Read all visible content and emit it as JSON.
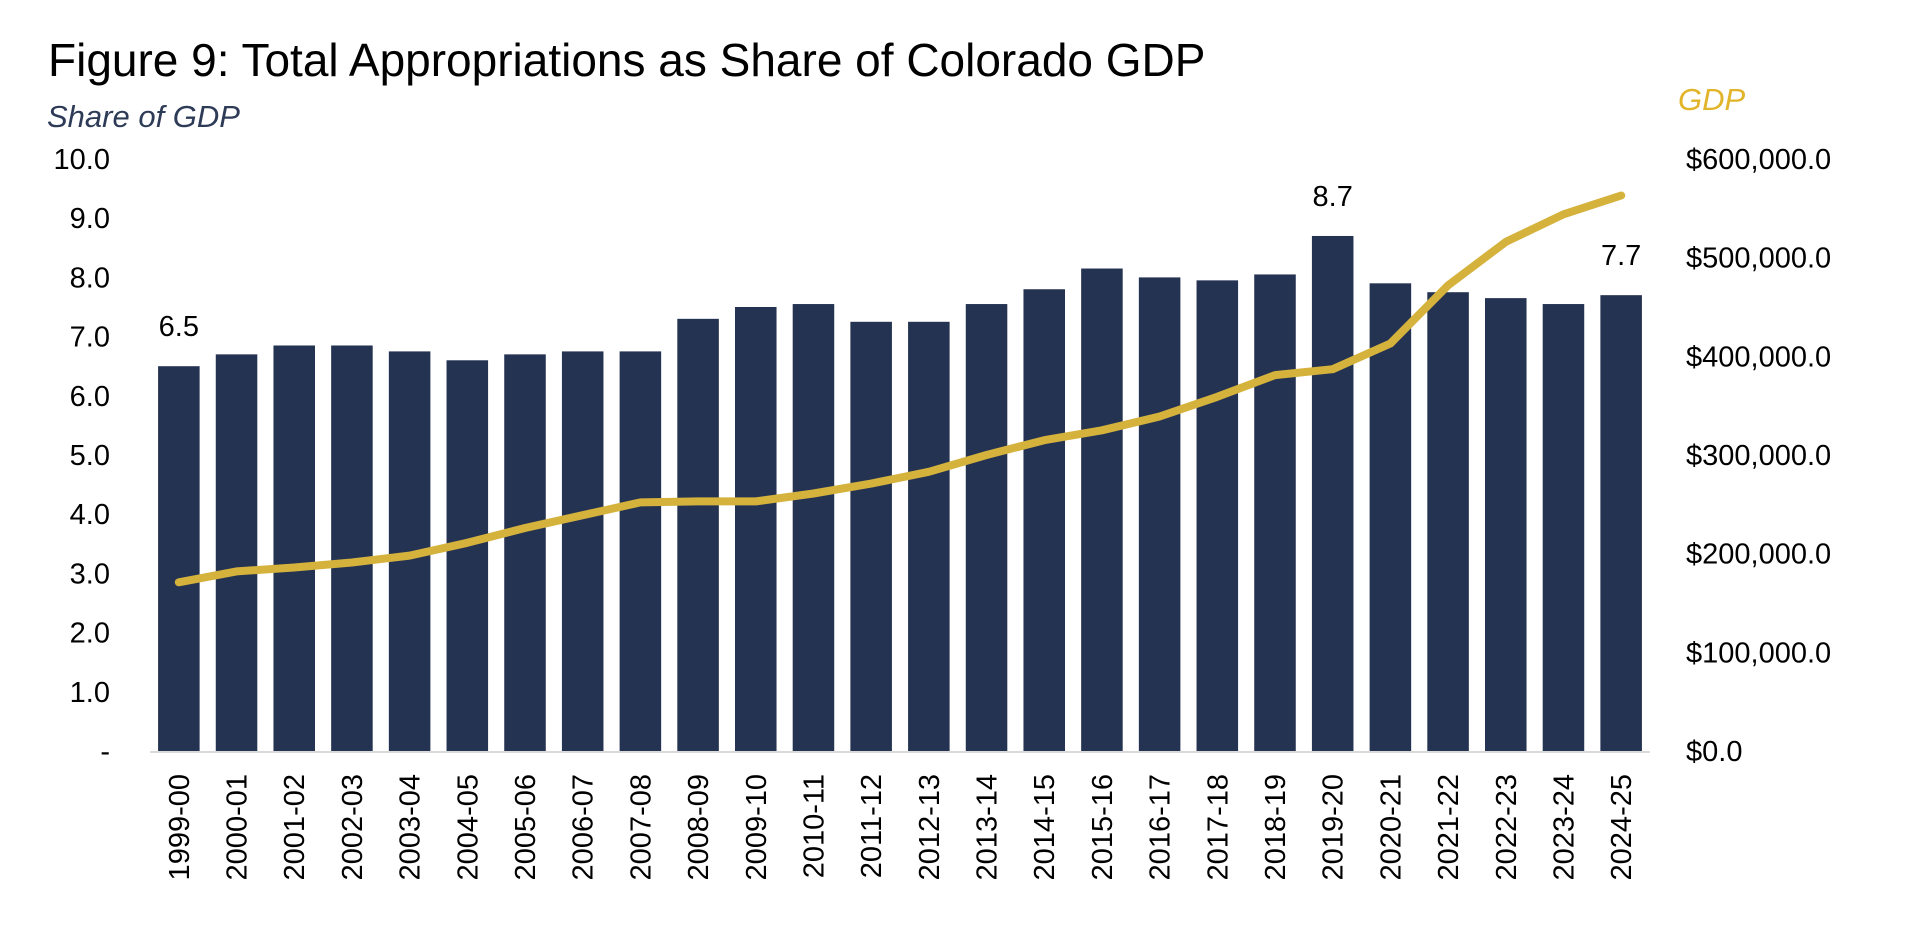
{
  "chart_data": {
    "type": "bar",
    "title": "Figure 9: Total Appropriations as Share of Colorado GDP",
    "ylabel": "Share of GDP",
    "y2label": "GDP",
    "ylim": [
      0,
      10
    ],
    "y2lim": [
      0,
      600000
    ],
    "yticks": [
      "-",
      "1.0",
      "2.0",
      "3.0",
      "4.0",
      "5.0",
      "6.0",
      "7.0",
      "8.0",
      "9.0",
      "10.0"
    ],
    "y2ticks": [
      "$0.0",
      "$100,000.0",
      "$200,000.0",
      "$300,000.0",
      "$400,000.0",
      "$500,000.0",
      "$600,000.0"
    ],
    "categories": [
      "1999-00",
      "2000-01",
      "2001-02",
      "2002-03",
      "2003-04",
      "2004-05",
      "2005-06",
      "2006-07",
      "2007-08",
      "2008-09",
      "2009-10",
      "2010-11",
      "2011-12",
      "2012-13",
      "2013-14",
      "2014-15",
      "2015-16",
      "2016-17",
      "2017-18",
      "2018-19",
      "2019-20",
      "2020-21",
      "2021-22",
      "2022-23",
      "2023-24",
      "2024-25"
    ],
    "series": [
      {
        "kind": "bar",
        "axis": "left",
        "color": "#253352",
        "values": [
          6.5,
          6.7,
          6.85,
          6.85,
          6.75,
          6.6,
          6.7,
          6.75,
          6.75,
          7.3,
          7.5,
          7.55,
          7.25,
          7.25,
          7.55,
          7.8,
          8.15,
          8.0,
          7.95,
          8.05,
          8.7,
          7.9,
          7.75,
          7.65,
          7.55,
          7.7
        ]
      },
      {
        "name": "GDP",
        "kind": "line",
        "axis": "right",
        "color": "#D4B23C",
        "values": [
          171000,
          182000,
          186000,
          191000,
          198000,
          211000,
          226000,
          239000,
          252000,
          253000,
          253000,
          261000,
          271000,
          283000,
          300000,
          315000,
          325000,
          339000,
          359000,
          381000,
          387000,
          413000,
          472000,
          516000,
          544000,
          563000
        ]
      }
    ],
    "data_labels": [
      {
        "index": 0,
        "text": "6.5"
      },
      {
        "index": 20,
        "text": "8.7"
      },
      {
        "index": 25,
        "text": "7.7"
      }
    ],
    "grid": false,
    "legend": "none"
  }
}
